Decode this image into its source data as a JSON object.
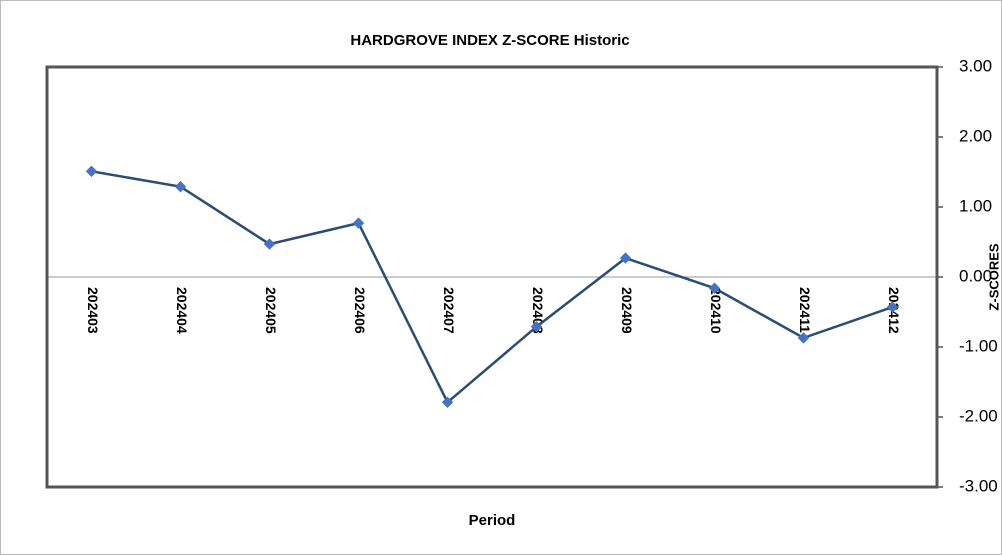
{
  "chart_data": {
    "type": "line",
    "title": "HARDGROVE INDEX Z-SCORE Historic",
    "x_label": "Period",
    "y_label": "Z-SCORES",
    "categories": [
      "202403",
      "202404",
      "202405",
      "202406",
      "202407",
      "202408",
      "202409",
      "202410",
      "202411",
      "202412"
    ],
    "series": [
      {
        "name": "Z-SCORE",
        "color": "#2a4d73",
        "marker_color": "#4472c4",
        "values": [
          1.51,
          1.29,
          0.47,
          0.77,
          -1.79,
          -0.71,
          0.27,
          -0.16,
          -0.87,
          -0.43
        ]
      }
    ],
    "ylim": [
      -3,
      3
    ],
    "yticks": [
      {
        "value": -3,
        "label": "-3.00"
      },
      {
        "value": -2,
        "label": "-2.00"
      },
      {
        "value": -1,
        "label": "-1.00"
      },
      {
        "value": 0,
        "label": "0.00"
      },
      {
        "value": 1,
        "label": "1.00"
      },
      {
        "value": 2,
        "label": "2.00"
      },
      {
        "value": 3,
        "label": "3.00"
      }
    ],
    "y_axis_side": "right",
    "grid": false
  }
}
